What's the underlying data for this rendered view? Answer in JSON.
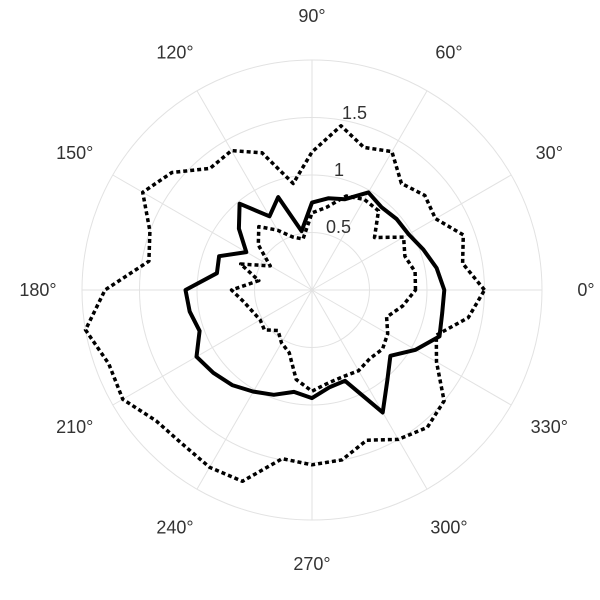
{
  "chart_data": {
    "type": "line",
    "projection": "polar",
    "angle_unit": "degrees",
    "angle_ticks": [
      "0°",
      "30°",
      "60°",
      "90°",
      "120°",
      "150°",
      "180°",
      "210°",
      "240°",
      "270°",
      "300°",
      "330°"
    ],
    "radial_ticks": [
      "0.5",
      "1",
      "1.5"
    ],
    "radial_tick_values": [
      0.5,
      1.0,
      1.5
    ],
    "radial_tick_angle_deg": 82,
    "rlim": [
      0,
      2.0
    ],
    "grid": true,
    "legend": "none",
    "series": [
      {
        "style": "solid",
        "theta": [
          0,
          10,
          20,
          30,
          40,
          50,
          60,
          70,
          80,
          90,
          100,
          110,
          120,
          130,
          140,
          150,
          160,
          170,
          180,
          190,
          200,
          210,
          220,
          230,
          240,
          250,
          260,
          270,
          280,
          290,
          300,
          310,
          320,
          330,
          340,
          350
        ],
        "r": [
          1.15,
          1.1,
          1.03,
          0.97,
          0.96,
          0.94,
          0.98,
          0.84,
          0.81,
          0.76,
          0.52,
          0.86,
          0.74,
          0.98,
          0.83,
          0.66,
          0.86,
          0.84,
          1.1,
          1.08,
          1.04,
          1.16,
          1.12,
          1.08,
          1.02,
          0.97,
          0.9,
          0.94,
          0.86,
          0.84,
          1.23,
          1.02,
          0.89,
          1.04,
          1.18,
          1.15
        ]
      },
      {
        "style": "dotted",
        "theta": [
          0,
          10,
          20,
          30,
          40,
          50,
          60,
          70,
          80,
          90,
          100,
          110,
          120,
          130,
          140,
          150,
          160,
          170,
          180,
          190,
          200,
          210,
          220,
          230,
          240,
          250,
          260,
          270,
          280,
          290,
          300,
          310,
          320,
          330,
          340,
          350
        ],
        "r": [
          1.5,
          1.33,
          1.4,
          1.24,
          1.28,
          1.21,
          1.39,
          1.32,
          1.45,
          1.2,
          0.94,
          1.27,
          1.4,
          1.38,
          1.59,
          1.7,
          1.5,
          1.44,
          1.8,
          2.0,
          1.88,
          1.9,
          1.77,
          1.75,
          1.78,
          1.77,
          1.49,
          1.52,
          1.5,
          1.39,
          1.5,
          1.56,
          1.5,
          1.25,
          1.15,
          1.38
        ]
      },
      {
        "style": "dotted",
        "theta": [
          0,
          10,
          20,
          30,
          40,
          50,
          60,
          70,
          80,
          90,
          100,
          110,
          120,
          130,
          140,
          150,
          160,
          170,
          180,
          190,
          200,
          210,
          220,
          230,
          240,
          250,
          260,
          270,
          280,
          290,
          300,
          310,
          320,
          330,
          340,
          350
        ],
        "r": [
          0.9,
          0.91,
          0.86,
          0.92,
          0.71,
          0.9,
          0.91,
          0.87,
          0.73,
          0.67,
          0.45,
          0.49,
          0.6,
          0.72,
          0.61,
          0.42,
          0.66,
          0.47,
          0.7,
          0.6,
          0.55,
          0.52,
          0.54,
          0.46,
          0.53,
          0.58,
          0.79,
          0.88,
          0.82,
          0.8,
          0.81,
          0.78,
          0.8,
          0.76,
          0.69,
          0.8
        ]
      }
    ]
  }
}
